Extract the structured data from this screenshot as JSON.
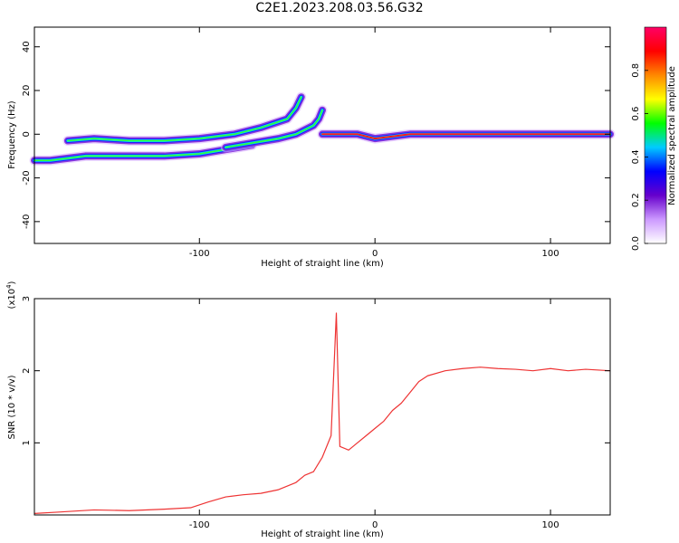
{
  "title": "C2E1.2023.208.03.56.G32",
  "chart_data": [
    {
      "type": "heatmap",
      "xlabel": "Height of straight line (km)",
      "ylabel": "Frequency (Hz)",
      "xlim": [
        -194,
        134
      ],
      "ylim": [
        -50,
        49
      ],
      "x_ticks": [
        -100,
        0,
        100
      ],
      "y_ticks": [
        -40,
        -20,
        0,
        20,
        40
      ],
      "colorbar": {
        "label": "Normalized spectral amplitude",
        "range": [
          0,
          1
        ],
        "ticks": [
          0.0,
          0.2,
          0.4,
          0.6,
          0.8
        ],
        "colors": [
          "#ffffff",
          "#cc99ff",
          "#6600cc",
          "#0000ff",
          "#00ccff",
          "#00ff00",
          "#ffff00",
          "#ff8800",
          "#ff0000",
          "#ff0066"
        ]
      },
      "ridges": [
        {
          "x": [
            -194,
            -185,
            -175,
            -165,
            -155,
            -140,
            -120,
            -100,
            -85,
            -70
          ],
          "y": [
            -12,
            -12,
            -11,
            -10,
            -10,
            -10,
            -10,
            -9,
            -7,
            -5
          ]
        },
        {
          "x": [
            -175,
            -160,
            -140,
            -120,
            -100,
            -80,
            -65,
            -50,
            -45,
            -42
          ],
          "y": [
            -3,
            -2,
            -3,
            -3,
            -2,
            0,
            3,
            7,
            12,
            17
          ]
        },
        {
          "x": [
            -85,
            -70,
            -55,
            -45,
            -40,
            -35,
            -32,
            -30
          ],
          "y": [
            -6,
            -4,
            -2,
            0,
            2,
            4,
            7,
            11
          ]
        },
        {
          "x": [
            -30,
            -20,
            -10,
            0,
            10,
            20,
            134
          ],
          "y": [
            0,
            0,
            0,
            -2,
            -1,
            0,
            0
          ]
        }
      ]
    },
    {
      "type": "line",
      "xlabel": "Height of straight line (km)",
      "ylabel": "SNR (10 * v/v)",
      "yscale_label": "(x10",
      "yscale_exp": "4",
      "yscale_close": ")",
      "xlim": [
        -194,
        134
      ],
      "ylim": [
        0,
        3
      ],
      "x_ticks": [
        -100,
        0,
        100
      ],
      "y_ticks": [
        1,
        2,
        3
      ],
      "series": [
        {
          "color": "#ee3333",
          "x": [
            -194,
            -180,
            -160,
            -140,
            -120,
            -105,
            -95,
            -85,
            -75,
            -65,
            -55,
            -45,
            -40,
            -35,
            -30,
            -25,
            -22,
            -20,
            -15,
            -10,
            -5,
            0,
            5,
            10,
            15,
            20,
            25,
            30,
            40,
            50,
            60,
            70,
            80,
            90,
            100,
            110,
            120,
            134
          ],
          "y": [
            0.02,
            0.04,
            0.07,
            0.06,
            0.08,
            0.1,
            0.18,
            0.25,
            0.28,
            0.3,
            0.35,
            0.45,
            0.55,
            0.6,
            0.8,
            1.1,
            2.8,
            0.95,
            0.9,
            1.0,
            1.1,
            1.2,
            1.3,
            1.45,
            1.55,
            1.7,
            1.85,
            1.93,
            2.0,
            2.03,
            2.05,
            2.03,
            2.02,
            2.0,
            2.03,
            2.0,
            2.02,
            2.0
          ]
        }
      ]
    }
  ]
}
